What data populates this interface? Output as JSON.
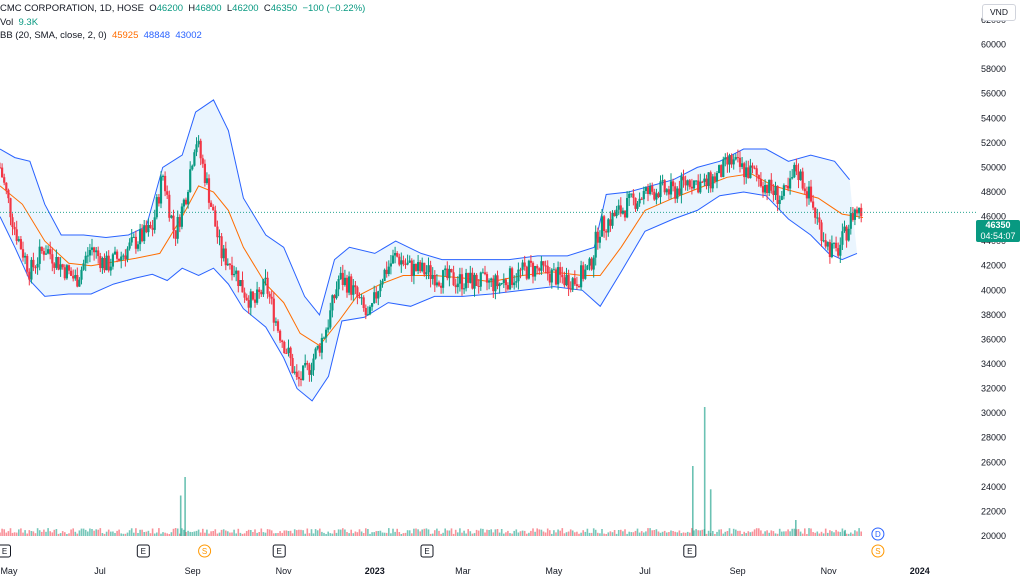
{
  "legend": {
    "symbol": "CMC CORPORATION, 1D, HOSE",
    "open_label": "O",
    "open": "46200",
    "high_label": "H",
    "high": "46800",
    "low_label": "L",
    "low": "46200",
    "close_label": "C",
    "close": "46350",
    "change": "−100 (−0.22%)",
    "vol_label": "Vol",
    "vol": "9.3K",
    "bb_label": "BB (20, SMA, close, 2, 0)",
    "bb_mid": "45925",
    "bb_upper": "48848",
    "bb_lower": "43002"
  },
  "currency": "VND",
  "last_price": {
    "value": "46350",
    "countdown": "04:54:07"
  },
  "colors": {
    "up": "#089981",
    "down": "#f23645",
    "bb_band": "#2962ff",
    "bb_basis": "#ff6d00",
    "band_fill": "#e3f2fd"
  },
  "chart_data": {
    "type": "candlestick",
    "y_axis": {
      "ticks": [
        "62000",
        "60000",
        "58000",
        "56000",
        "54000",
        "52000",
        "50000",
        "48000",
        "46000",
        "44000",
        "42000",
        "40000",
        "38000",
        "36000",
        "34000",
        "32000",
        "30000",
        "28000",
        "26000",
        "24000",
        "22000",
        "20000"
      ],
      "ylim": [
        20000,
        62000
      ]
    },
    "x_axis": {
      "ticks": [
        {
          "label": "May",
          "date": "2022-05-01"
        },
        {
          "label": "Jul",
          "date": "2022-07-01"
        },
        {
          "label": "Sep",
          "date": "2022-09-01"
        },
        {
          "label": "Nov",
          "date": "2022-11-01"
        },
        {
          "label": "2023",
          "date": "2023-01-01"
        },
        {
          "label": "Mar",
          "date": "2023-03-01"
        },
        {
          "label": "May",
          "date": "2023-05-01"
        },
        {
          "label": "Jul",
          "date": "2023-07-01"
        },
        {
          "label": "Sep",
          "date": "2023-09-01"
        },
        {
          "label": "Nov",
          "date": "2023-11-01"
        },
        {
          "label": "2024",
          "date": "2024-01-01"
        }
      ],
      "xlim": [
        "2022-04-25",
        "2024-02-05"
      ]
    },
    "price_path": [
      [
        "2022-04-25",
        50000
      ],
      [
        "2022-05-05",
        45000
      ],
      [
        "2022-05-15",
        41500
      ],
      [
        "2022-05-25",
        43500
      ],
      [
        "2022-06-05",
        42000
      ],
      [
        "2022-06-15",
        40800
      ],
      [
        "2022-06-25",
        43500
      ],
      [
        "2022-07-05",
        42000
      ],
      [
        "2022-07-15",
        42800
      ],
      [
        "2022-07-25",
        44000
      ],
      [
        "2022-08-05",
        45000
      ],
      [
        "2022-08-12",
        49500
      ],
      [
        "2022-08-20",
        44500
      ],
      [
        "2022-08-28",
        48000
      ],
      [
        "2022-09-03",
        52500
      ],
      [
        "2022-09-10",
        49000
      ],
      [
        "2022-09-20",
        43000
      ],
      [
        "2022-09-28",
        42000
      ],
      [
        "2022-10-05",
        40000
      ],
      [
        "2022-10-12",
        38800
      ],
      [
        "2022-10-20",
        40500
      ],
      [
        "2022-10-28",
        37000
      ],
      [
        "2022-11-05",
        34500
      ],
      [
        "2022-11-10",
        32500
      ],
      [
        "2022-11-17",
        33500
      ],
      [
        "2022-11-25",
        35500
      ],
      [
        "2022-12-01",
        37500
      ],
      [
        "2022-12-08",
        41000
      ],
      [
        "2022-12-15",
        40500
      ],
      [
        "2022-12-22",
        39000
      ],
      [
        "2022-12-28",
        37500
      ],
      [
        "2023-01-05",
        41000
      ],
      [
        "2023-01-15",
        42800
      ],
      [
        "2023-01-25",
        41800
      ],
      [
        "2023-02-05",
        41500
      ],
      [
        "2023-02-15",
        41000
      ],
      [
        "2023-02-25",
        40800
      ],
      [
        "2023-03-10",
        40700
      ],
      [
        "2023-03-25",
        40500
      ],
      [
        "2023-04-05",
        41200
      ],
      [
        "2023-04-15",
        41800
      ],
      [
        "2023-04-25",
        41500
      ],
      [
        "2023-05-05",
        41000
      ],
      [
        "2023-05-15",
        40800
      ],
      [
        "2023-05-25",
        41800
      ],
      [
        "2023-05-31",
        45000
      ],
      [
        "2023-06-10",
        46000
      ],
      [
        "2023-06-20",
        47000
      ],
      [
        "2023-06-30",
        47800
      ],
      [
        "2023-07-10",
        48200
      ],
      [
        "2023-07-20",
        48000
      ],
      [
        "2023-07-31",
        49000
      ],
      [
        "2023-08-10",
        48500
      ],
      [
        "2023-08-20",
        49500
      ],
      [
        "2023-08-27",
        50500
      ],
      [
        "2023-09-05",
        49800
      ],
      [
        "2023-09-12",
        49500
      ],
      [
        "2023-09-20",
        48500
      ],
      [
        "2023-09-30",
        47500
      ],
      [
        "2023-10-05",
        48000
      ],
      [
        "2023-10-10",
        50000
      ],
      [
        "2023-10-18",
        48000
      ],
      [
        "2023-10-25",
        45500
      ],
      [
        "2023-11-01",
        43500
      ],
      [
        "2023-11-06",
        43000
      ],
      [
        "2023-11-12",
        44500
      ],
      [
        "2023-11-18",
        46500
      ],
      [
        "2023-11-24",
        46350
      ]
    ],
    "bollinger": {
      "upper": [
        [
          "2022-04-25",
          51500
        ],
        [
          "2022-05-05",
          50800
        ],
        [
          "2022-05-15",
          50500
        ],
        [
          "2022-05-25",
          47000
        ],
        [
          "2022-06-05",
          44500
        ],
        [
          "2022-06-20",
          44500
        ],
        [
          "2022-07-05",
          44300
        ],
        [
          "2022-07-20",
          44500
        ],
        [
          "2022-08-01",
          45200
        ],
        [
          "2022-08-12",
          50000
        ],
        [
          "2022-08-25",
          51000
        ],
        [
          "2022-09-03",
          54500
        ],
        [
          "2022-09-15",
          55500
        ],
        [
          "2022-09-25",
          53000
        ],
        [
          "2022-10-05",
          47500
        ],
        [
          "2022-10-20",
          44500
        ],
        [
          "2022-11-01",
          43500
        ],
        [
          "2022-11-15",
          39500
        ],
        [
          "2022-11-25",
          38000
        ],
        [
          "2022-12-05",
          42500
        ],
        [
          "2022-12-15",
          43500
        ],
        [
          "2023-01-01",
          43000
        ],
        [
          "2023-01-15",
          44000
        ],
        [
          "2023-02-01",
          43000
        ],
        [
          "2023-02-15",
          42500
        ],
        [
          "2023-03-01",
          42500
        ],
        [
          "2023-04-01",
          42500
        ],
        [
          "2023-04-20",
          42800
        ],
        [
          "2023-05-10",
          42800
        ],
        [
          "2023-05-28",
          43500
        ],
        [
          "2023-06-05",
          47800
        ],
        [
          "2023-06-20",
          48000
        ],
        [
          "2023-07-05",
          48500
        ],
        [
          "2023-07-20",
          49000
        ],
        [
          "2023-08-05",
          50000
        ],
        [
          "2023-08-20",
          50500
        ],
        [
          "2023-09-05",
          51500
        ],
        [
          "2023-09-20",
          51500
        ],
        [
          "2023-10-05",
          50500
        ],
        [
          "2023-10-20",
          51000
        ],
        [
          "2023-11-05",
          50500
        ],
        [
          "2023-11-15",
          49000
        ]
      ],
      "lower": [
        [
          "2022-04-25",
          46000
        ],
        [
          "2022-05-05",
          43500
        ],
        [
          "2022-05-15",
          40800
        ],
        [
          "2022-05-25",
          39500
        ],
        [
          "2022-06-10",
          39700
        ],
        [
          "2022-06-25",
          39700
        ],
        [
          "2022-07-10",
          40500
        ],
        [
          "2022-07-25",
          41000
        ],
        [
          "2022-08-05",
          41300
        ],
        [
          "2022-08-15",
          40800
        ],
        [
          "2022-08-25",
          41800
        ],
        [
          "2022-09-05",
          41200
        ],
        [
          "2022-09-15",
          41800
        ],
        [
          "2022-09-25",
          40500
        ],
        [
          "2022-10-05",
          38500
        ],
        [
          "2022-10-20",
          37000
        ],
        [
          "2022-11-01",
          34500
        ],
        [
          "2022-11-10",
          32000
        ],
        [
          "2022-11-20",
          31000
        ],
        [
          "2022-12-01",
          33000
        ],
        [
          "2022-12-10",
          37500
        ],
        [
          "2022-12-25",
          37800
        ],
        [
          "2023-01-10",
          39000
        ],
        [
          "2023-01-25",
          38700
        ],
        [
          "2023-02-10",
          39500
        ],
        [
          "2023-03-01",
          39500
        ],
        [
          "2023-03-20",
          39700
        ],
        [
          "2023-04-10",
          40000
        ],
        [
          "2023-05-01",
          40300
        ],
        [
          "2023-05-20",
          40000
        ],
        [
          "2023-06-01",
          38700
        ],
        [
          "2023-06-15",
          41500
        ],
        [
          "2023-07-01",
          44800
        ],
        [
          "2023-07-20",
          45800
        ],
        [
          "2023-08-05",
          46500
        ],
        [
          "2023-08-20",
          47700
        ],
        [
          "2023-09-05",
          48000
        ],
        [
          "2023-09-20",
          47700
        ],
        [
          "2023-10-05",
          45800
        ],
        [
          "2023-10-20",
          44500
        ],
        [
          "2023-11-01",
          43000
        ],
        [
          "2023-11-10",
          42500
        ],
        [
          "2023-11-20",
          43000
        ]
      ],
      "basis": [
        [
          "2022-04-25",
          48500
        ],
        [
          "2022-05-10",
          47000
        ],
        [
          "2022-05-25",
          44000
        ],
        [
          "2022-06-10",
          42200
        ],
        [
          "2022-06-25",
          42000
        ],
        [
          "2022-07-10",
          42300
        ],
        [
          "2022-07-25",
          42600
        ],
        [
          "2022-08-10",
          43000
        ],
        [
          "2022-08-25",
          46000
        ],
        [
          "2022-09-05",
          48500
        ],
        [
          "2022-09-15",
          48000
        ],
        [
          "2022-09-25",
          46500
        ],
        [
          "2022-10-05",
          43500
        ],
        [
          "2022-10-20",
          40500
        ],
        [
          "2022-11-01",
          39000
        ],
        [
          "2022-11-12",
          36500
        ],
        [
          "2022-11-25",
          35500
        ],
        [
          "2022-12-08",
          37500
        ],
        [
          "2022-12-20",
          39500
        ],
        [
          "2023-01-05",
          40500
        ],
        [
          "2023-01-20",
          41200
        ],
        [
          "2023-02-10",
          41200
        ],
        [
          "2023-03-01",
          41000
        ],
        [
          "2023-03-20",
          40700
        ],
        [
          "2023-04-10",
          41200
        ],
        [
          "2023-04-30",
          41500
        ],
        [
          "2023-05-20",
          41200
        ],
        [
          "2023-06-01",
          41200
        ],
        [
          "2023-06-15",
          43500
        ],
        [
          "2023-07-01",
          46500
        ],
        [
          "2023-07-20",
          47500
        ],
        [
          "2023-08-10",
          48500
        ],
        [
          "2023-08-25",
          49200
        ],
        [
          "2023-09-10",
          49500
        ],
        [
          "2023-09-25",
          48500
        ],
        [
          "2023-10-10",
          48000
        ],
        [
          "2023-10-25",
          47500
        ],
        [
          "2023-11-10",
          46200
        ],
        [
          "2023-11-24",
          45925
        ]
      ]
    },
    "volume_spikes": [
      {
        "date": "2022-08-27",
        "volume": 24800
      },
      {
        "date": "2022-08-24",
        "volume": 23300
      },
      {
        "date": "2023-08-02",
        "volume": 25700
      },
      {
        "date": "2023-08-10",
        "volume": 30500
      },
      {
        "date": "2023-08-14",
        "volume": 23800
      },
      {
        "date": "2023-10-10",
        "volume": 21300
      },
      {
        "date": "2023-11-12",
        "volume": 20500
      }
    ],
    "events": [
      {
        "label": "E",
        "date": "2022-04-28",
        "kind": "earnings"
      },
      {
        "label": "E",
        "date": "2022-07-30",
        "kind": "earnings"
      },
      {
        "label": "S",
        "date": "2022-09-09",
        "kind": "split"
      },
      {
        "label": "E",
        "date": "2022-10-29",
        "kind": "earnings"
      },
      {
        "label": "E",
        "date": "2023-02-05",
        "kind": "earnings"
      },
      {
        "label": "E",
        "date": "2023-07-31",
        "kind": "earnings"
      },
      {
        "label": "D",
        "date": "2023-12-04",
        "kind": "dividend"
      },
      {
        "label": "S",
        "date": "2023-12-04",
        "kind": "split"
      }
    ]
  }
}
